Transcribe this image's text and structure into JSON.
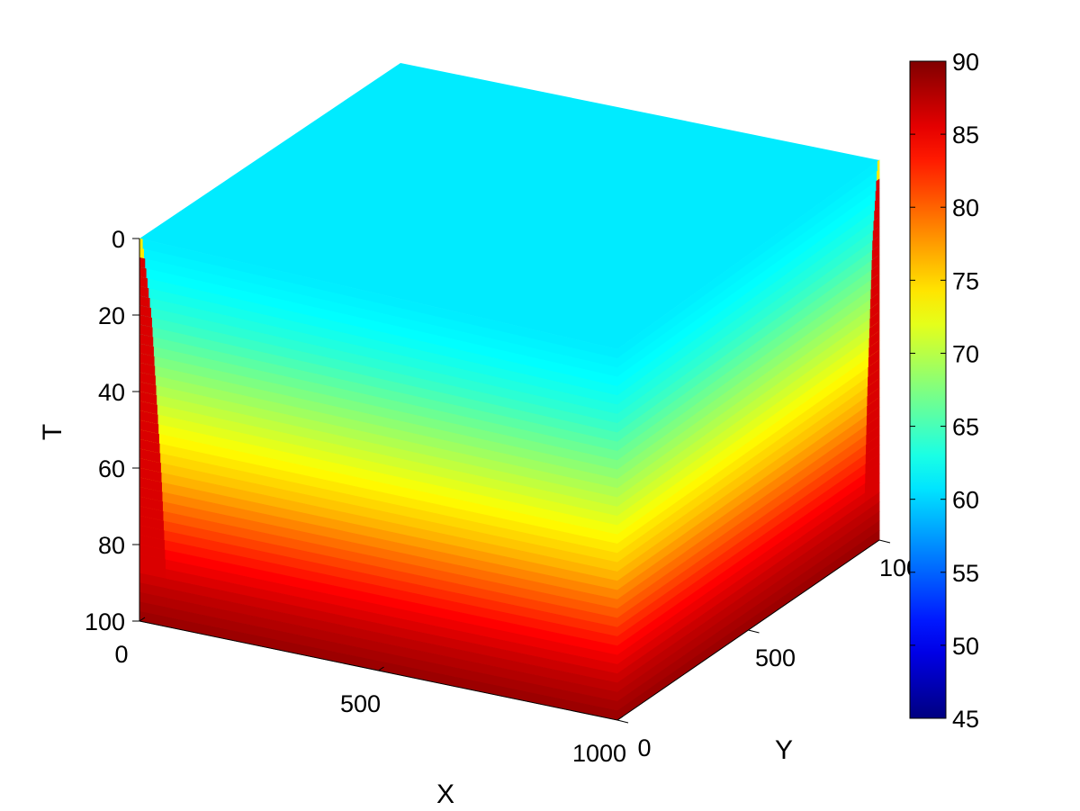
{
  "chart_data": {
    "type": "heatmap",
    "variant": "3d-volume-slices",
    "xlabel": "X",
    "ylabel": "Y",
    "zlabel": "T",
    "xlim": [
      0,
      1000
    ],
    "ylim": [
      0,
      1000
    ],
    "zlim": [
      0,
      100
    ],
    "z_direction": "reversed",
    "x_ticks": [
      {
        "value": 0,
        "label": "0"
      },
      {
        "value": 500,
        "label": "500"
      },
      {
        "value": 1000,
        "label": "1000"
      }
    ],
    "y_ticks": [
      {
        "value": 0,
        "label": "0"
      },
      {
        "value": 500,
        "label": "500"
      },
      {
        "value": 1000,
        "label": "1000"
      }
    ],
    "z_ticks": [
      {
        "value": 0,
        "label": "0"
      },
      {
        "value": 20,
        "label": "20"
      },
      {
        "value": 40,
        "label": "40"
      },
      {
        "value": 60,
        "label": "60"
      },
      {
        "value": 80,
        "label": "80"
      },
      {
        "value": 100,
        "label": "100"
      }
    ],
    "colorbar": {
      "range": [
        45,
        90
      ],
      "colormap": "jet",
      "ticks": [
        {
          "value": 45,
          "label": "45"
        },
        {
          "value": 50,
          "label": "50"
        },
        {
          "value": 55,
          "label": "55"
        },
        {
          "value": 60,
          "label": "60"
        },
        {
          "value": 65,
          "label": "65"
        },
        {
          "value": 70,
          "label": "70"
        },
        {
          "value": 75,
          "label": "75"
        },
        {
          "value": 80,
          "label": "80"
        },
        {
          "value": 85,
          "label": "85"
        },
        {
          "value": 90,
          "label": "90"
        }
      ]
    },
    "surface_values": {
      "top_face_value": 61,
      "profile_depth": [
        0,
        10,
        20,
        30,
        40,
        50,
        60,
        70,
        80,
        90,
        100
      ],
      "profile_values": [
        61,
        62,
        64,
        67,
        70,
        73,
        76,
        80,
        84,
        87,
        89
      ],
      "edge_hot_value": 86,
      "edge_depth": [
        0,
        10,
        20,
        40,
        60,
        100
      ],
      "edge_width_fraction": [
        0.005,
        0.015,
        0.025,
        0.035,
        0.045,
        0.06
      ]
    },
    "grid": false,
    "legend": "colorbar-right"
  }
}
